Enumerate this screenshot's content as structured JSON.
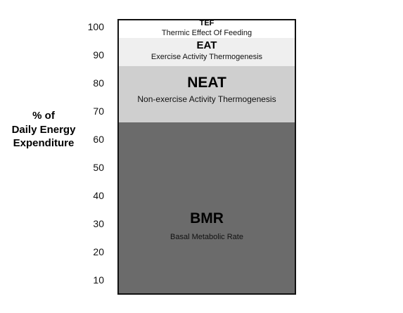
{
  "chart_data": {
    "type": "bar",
    "stacked": true,
    "ylabel_lines": [
      "% of",
      "Daily Energy",
      "Expenditure"
    ],
    "ylim": [
      5,
      102.5
    ],
    "yticks": [
      10,
      20,
      30,
      40,
      50,
      60,
      70,
      80,
      90,
      100
    ],
    "grid": false,
    "segments": [
      {
        "abbr": "BMR",
        "name": "Basal Metabolic Rate",
        "from": 5,
        "to": 66,
        "color": "#6b6b6b"
      },
      {
        "abbr": "NEAT",
        "name": "Non-exercise Activity Thermogenesis",
        "from": 66,
        "to": 86,
        "color": "#cfcfcf"
      },
      {
        "abbr": "EAT",
        "name": "Exercise Activity Thermogenesis",
        "from": 86,
        "to": 96,
        "color": "#efefef"
      },
      {
        "abbr": "TEF",
        "name": "Thermic Effect Of Feeding",
        "from": 96,
        "to": 102.5,
        "color": "#ffffff"
      }
    ]
  }
}
